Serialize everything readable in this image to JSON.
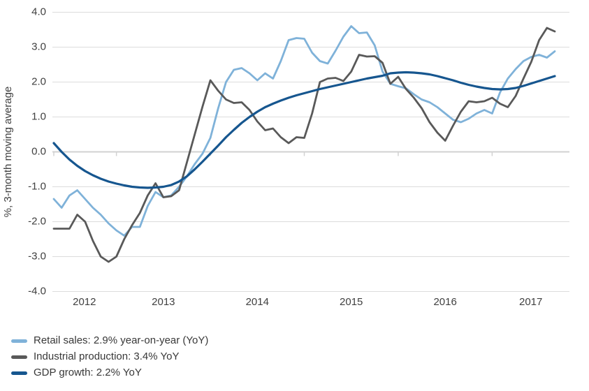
{
  "chart_data": {
    "type": "line",
    "title": "",
    "xlabel": "",
    "ylabel": "%, 3-month moving average",
    "ylim": [
      -4.0,
      4.0
    ],
    "grid": "horizontal",
    "legend_position": "bottom-left",
    "frequency": "monthly",
    "start_month": "2012-05",
    "y_ticks": [
      {
        "value": 4,
        "label": "4.0"
      },
      {
        "value": 3,
        "label": "3.0"
      },
      {
        "value": 2,
        "label": "2.0"
      },
      {
        "value": 1,
        "label": "1.0"
      },
      {
        "value": 0,
        "label": "0.0"
      },
      {
        "value": -1,
        "label": "-1.0"
      },
      {
        "value": -2,
        "label": "-2.0"
      },
      {
        "value": -3,
        "label": "-3.0"
      },
      {
        "value": -4,
        "label": "-4.0"
      }
    ],
    "x_year_labels": [
      "2012",
      "2013",
      "2014",
      "2015",
      "2016",
      "2017"
    ],
    "jan_tick_month_indices": [
      8,
      20,
      32,
      44,
      56
    ],
    "series": [
      {
        "name": "Retail sales: 2.9% year-on-year (YoY)",
        "color": "#7fb2d9",
        "final_value": "2.9% YoY",
        "values": [
          -1.35,
          -1.6,
          -1.25,
          -1.1,
          -1.35,
          -1.6,
          -1.8,
          -2.05,
          -2.25,
          -2.4,
          -2.15,
          -2.15,
          -1.55,
          -1.15,
          -1.3,
          -1.25,
          -1.0,
          -0.7,
          -0.35,
          -0.05,
          0.4,
          1.25,
          2.0,
          2.35,
          2.4,
          2.25,
          2.05,
          2.25,
          2.1,
          2.6,
          3.2,
          3.26,
          3.24,
          2.84,
          2.6,
          2.53,
          2.9,
          3.3,
          3.6,
          3.4,
          3.42,
          3.05,
          2.3,
          1.95,
          1.88,
          1.82,
          1.65,
          1.5,
          1.42,
          1.28,
          1.1,
          0.92,
          0.85,
          0.95,
          1.1,
          1.2,
          1.1,
          1.7,
          2.1,
          2.37,
          2.6,
          2.72,
          2.78,
          2.7,
          2.88
        ]
      },
      {
        "name": "Industrial production: 3.4% YoY",
        "color": "#595959",
        "final_value": "3.4% YoY",
        "values": [
          -2.2,
          -2.2,
          -2.2,
          -1.8,
          -2.0,
          -2.55,
          -3.0,
          -3.15,
          -3.0,
          -2.5,
          -2.1,
          -1.75,
          -1.25,
          -0.9,
          -1.3,
          -1.27,
          -1.1,
          -0.3,
          0.5,
          1.3,
          2.05,
          1.75,
          1.5,
          1.4,
          1.42,
          1.2,
          0.87,
          0.62,
          0.67,
          0.42,
          0.25,
          0.42,
          0.4,
          1.1,
          2.0,
          2.1,
          2.12,
          2.03,
          2.3,
          2.78,
          2.73,
          2.74,
          2.55,
          1.95,
          2.15,
          1.8,
          1.55,
          1.25,
          0.85,
          0.55,
          0.32,
          0.75,
          1.15,
          1.45,
          1.42,
          1.45,
          1.55,
          1.38,
          1.28,
          1.6,
          2.1,
          2.58,
          3.2,
          3.55,
          3.45
        ]
      },
      {
        "name": "GDP growth: 2.2% YoY",
        "color": "#16568f",
        "final_value": "2.2% YoY",
        "values": [
          0.25,
          0.0,
          -0.22,
          -0.4,
          -0.55,
          -0.67,
          -0.77,
          -0.85,
          -0.91,
          -0.96,
          -1.0,
          -1.02,
          -1.03,
          -1.02,
          -1.0,
          -0.95,
          -0.85,
          -0.7,
          -0.5,
          -0.28,
          -0.05,
          0.18,
          0.42,
          0.63,
          0.83,
          1.0,
          1.15,
          1.28,
          1.38,
          1.47,
          1.55,
          1.62,
          1.68,
          1.74,
          1.8,
          1.85,
          1.9,
          1.95,
          2.0,
          2.05,
          2.1,
          2.14,
          2.18,
          2.25,
          2.27,
          2.28,
          2.27,
          2.25,
          2.22,
          2.17,
          2.11,
          2.05,
          1.98,
          1.92,
          1.87,
          1.83,
          1.8,
          1.79,
          1.8,
          1.83,
          1.89,
          1.96,
          2.03,
          2.1,
          2.17
        ]
      }
    ],
    "colors": {
      "gridline": "#dcdcdc",
      "zero_line": "#d2d2d2",
      "tick_text": "#404040",
      "legend_text": "#383838",
      "background": "#ffffff"
    }
  }
}
